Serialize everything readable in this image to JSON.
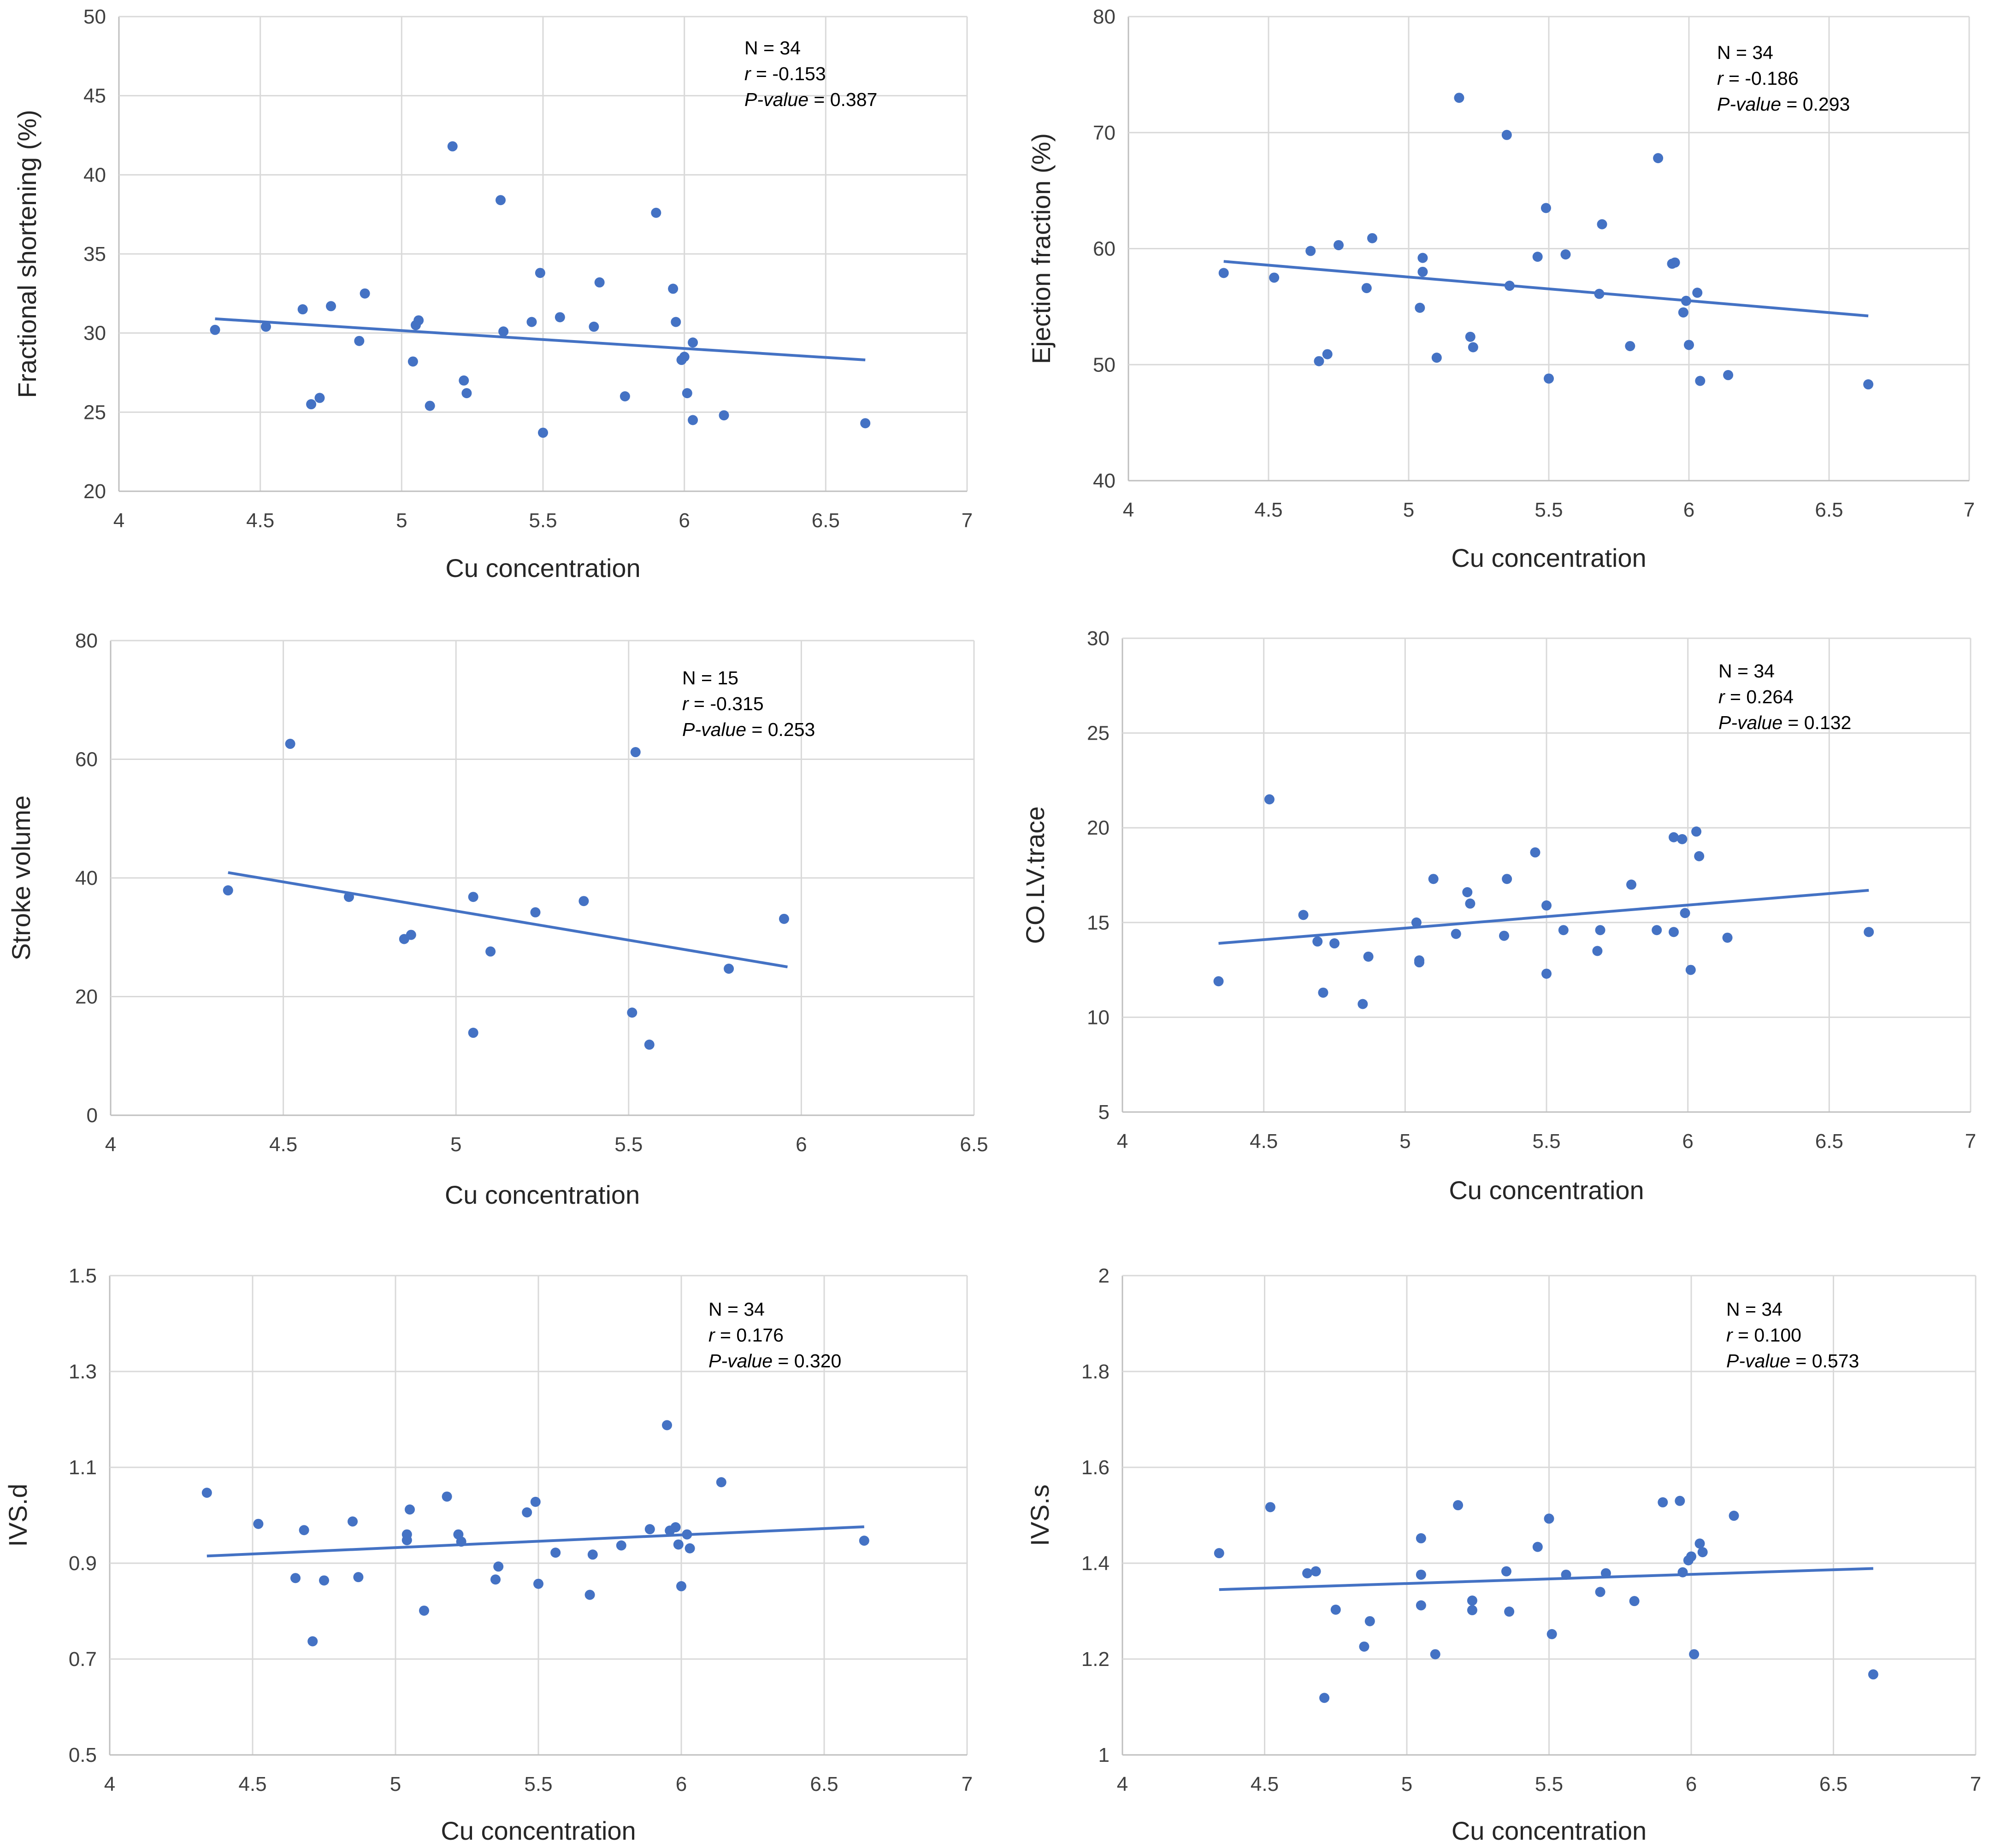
{
  "colors": {
    "marker": "#4472C4",
    "trend": "#4472C4",
    "grid": "#d9d9d9",
    "axis": "#bfbfbf"
  },
  "chart_data": [
    {
      "type": "scatter",
      "xlabel": "Cu concentration",
      "ylabel": "Fractional  shortening (%)",
      "xlim": [
        4,
        7
      ],
      "xticks": [
        "4",
        "4.5",
        "5",
        "5.5",
        "6",
        "6.5",
        "7"
      ],
      "ylim": [
        20,
        50
      ],
      "yticks": [
        "20",
        "25",
        "30",
        "35",
        "40",
        "45",
        "50"
      ],
      "stats": {
        "n": "N = 34",
        "r_label": "r",
        "r_value": " = -0.153",
        "p_label": "P-value",
        "p_value": " = 0.387"
      },
      "trendline": {
        "x": [
          4.34,
          6.64
        ],
        "y": [
          30.9,
          28.3
        ]
      },
      "x": [
        4.34,
        4.52,
        4.65,
        4.68,
        4.71,
        4.75,
        4.85,
        4.87,
        5.04,
        5.05,
        5.06,
        5.1,
        5.18,
        5.22,
        5.23,
        5.35,
        5.36,
        5.46,
        5.49,
        5.5,
        5.56,
        5.68,
        5.7,
        5.79,
        5.9,
        5.96,
        5.97,
        5.99,
        6.0,
        6.01,
        6.03,
        6.03,
        6.14,
        6.64
      ],
      "y": [
        30.2,
        30.4,
        31.5,
        25.5,
        25.9,
        31.7,
        29.5,
        32.5,
        28.2,
        30.5,
        30.8,
        25.4,
        41.8,
        27.0,
        26.2,
        38.4,
        30.1,
        30.7,
        33.8,
        23.7,
        31.0,
        30.4,
        33.2,
        26.0,
        37.6,
        32.8,
        30.7,
        28.3,
        28.5,
        26.2,
        29.4,
        24.5,
        24.8,
        24.3
      ]
    },
    {
      "type": "scatter",
      "xlabel": "Cu concentration",
      "ylabel": "Ejection  fraction (%)",
      "xlim": [
        4,
        7
      ],
      "xticks": [
        "4",
        "4.5",
        "5",
        "5.5",
        "6",
        "6.5",
        "7"
      ],
      "ylim": [
        40,
        80
      ],
      "yticks": [
        "40",
        "50",
        "60",
        "70",
        "80"
      ],
      "stats": {
        "n": "N = 34",
        "r_label": "r",
        "r_value": " = -0.186",
        "p_label": "P-value",
        "p_value": " = 0.293"
      },
      "trendline": {
        "x": [
          4.34,
          6.64
        ],
        "y": [
          58.9,
          54.2
        ]
      },
      "x": [
        4.34,
        4.52,
        4.65,
        4.68,
        4.71,
        4.75,
        4.85,
        4.87,
        5.04,
        5.05,
        5.05,
        5.1,
        5.18,
        5.22,
        5.23,
        5.35,
        5.36,
        5.46,
        5.49,
        5.5,
        5.56,
        5.68,
        5.69,
        5.79,
        5.89,
        5.94,
        5.95,
        5.98,
        5.99,
        6.0,
        6.03,
        6.04,
        6.14,
        6.64
      ],
      "y": [
        57.9,
        57.5,
        59.8,
        50.3,
        50.9,
        60.3,
        56.6,
        60.9,
        54.9,
        59.2,
        58.0,
        50.6,
        73.0,
        52.4,
        51.5,
        69.8,
        56.8,
        59.3,
        63.5,
        48.8,
        59.5,
        56.1,
        62.1,
        51.6,
        67.8,
        58.7,
        58.8,
        54.5,
        55.5,
        51.7,
        56.2,
        48.6,
        49.1,
        48.3
      ]
    },
    {
      "type": "scatter",
      "xlabel": "Cu concentration",
      "ylabel": "Stroke  volume",
      "xlim": [
        4,
        6.5
      ],
      "xticks": [
        "4",
        "4.5",
        "5",
        "5.5",
        "6",
        "6.5"
      ],
      "ylim": [
        0,
        80
      ],
      "yticks": [
        "0",
        "20",
        "40",
        "60",
        "80"
      ],
      "stats": {
        "n": "N = 15",
        "r_label": "r",
        "r_value": " = -0.315",
        "p_label": "P-value",
        "p_value": " = 0.253"
      },
      "trendline": {
        "x": [
          4.34,
          5.96
        ],
        "y": [
          40.9,
          25.0
        ]
      },
      "x": [
        4.34,
        4.52,
        4.69,
        4.85,
        4.87,
        5.05,
        5.05,
        5.1,
        5.23,
        5.37,
        5.51,
        5.52,
        5.56,
        5.79,
        5.95
      ],
      "y": [
        37.9,
        62.6,
        36.8,
        29.7,
        30.4,
        36.8,
        13.9,
        27.6,
        34.2,
        36.1,
        17.3,
        61.2,
        11.9,
        24.7,
        33.1
      ]
    },
    {
      "type": "scatter",
      "xlabel": "Cu concentration",
      "ylabel": "CO.LV.trace",
      "xlim": [
        4,
        7
      ],
      "xticks": [
        "4",
        "4.5",
        "5",
        "5.5",
        "6",
        "6.5",
        "7"
      ],
      "ylim": [
        5,
        30
      ],
      "yticks": [
        "5",
        "10",
        "15",
        "20",
        "25",
        "30"
      ],
      "stats": {
        "n": "N = 34",
        "r_label": "r",
        "r_value": " = 0.264",
        "p_label": "P-value",
        "p_value": " = 0.132"
      },
      "trendline": {
        "x": [
          4.34,
          6.64
        ],
        "y": [
          13.9,
          16.7
        ]
      },
      "x": [
        4.34,
        4.52,
        4.64,
        4.69,
        4.71,
        4.75,
        4.85,
        4.87,
        5.04,
        5.05,
        5.05,
        5.1,
        5.18,
        5.22,
        5.23,
        5.35,
        5.36,
        5.46,
        5.5,
        5.5,
        5.56,
        5.68,
        5.69,
        5.8,
        5.89,
        5.95,
        5.95,
        5.98,
        5.99,
        6.01,
        6.03,
        6.04,
        6.14,
        6.64
      ],
      "y": [
        11.9,
        21.5,
        15.4,
        14.0,
        11.3,
        13.9,
        10.7,
        13.2,
        15.0,
        12.9,
        13.0,
        17.3,
        14.4,
        16.6,
        16.0,
        14.3,
        17.3,
        18.7,
        15.9,
        12.3,
        14.6,
        13.5,
        14.6,
        17.0,
        14.6,
        19.5,
        14.5,
        19.4,
        15.5,
        12.5,
        19.8,
        18.5,
        14.2,
        14.5
      ]
    },
    {
      "type": "scatter",
      "xlabel": "Cu concentration",
      "ylabel": "IVS.d",
      "xlim": [
        4,
        7
      ],
      "xticks": [
        "4",
        "4.5",
        "5",
        "5.5",
        "6",
        "6.5",
        "7"
      ],
      "ylim": [
        0.5,
        1.5
      ],
      "yticks": [
        "0.5",
        "0.7",
        "0.9",
        "1.1",
        "1.3",
        "1.5"
      ],
      "stats": {
        "n": "N = 34",
        "r_label": "r",
        "r_value": " = 0.176",
        "p_label": "P-value",
        "p_value": " = 0.320"
      },
      "trendline": {
        "x": [
          4.34,
          6.64
        ],
        "y": [
          0.915,
          0.976
        ]
      },
      "x": [
        4.34,
        4.52,
        4.65,
        4.68,
        4.71,
        4.75,
        4.85,
        4.87,
        5.04,
        5.04,
        5.05,
        5.1,
        5.18,
        5.22,
        5.23,
        5.35,
        5.36,
        5.46,
        5.49,
        5.5,
        5.56,
        5.68,
        5.69,
        5.79,
        5.89,
        5.95,
        5.96,
        5.98,
        5.99,
        6.0,
        6.02,
        6.03,
        6.14,
        6.64
      ],
      "y": [
        1.047,
        0.982,
        0.869,
        0.969,
        0.737,
        0.864,
        0.987,
        0.871,
        0.948,
        0.96,
        1.012,
        0.801,
        1.039,
        0.96,
        0.945,
        0.866,
        0.893,
        1.006,
        1.028,
        0.857,
        0.922,
        0.834,
        0.918,
        0.937,
        0.971,
        1.188,
        0.968,
        0.975,
        0.939,
        0.852,
        0.96,
        0.931,
        1.069,
        0.947
      ]
    },
    {
      "type": "scatter",
      "xlabel": "Cu concentration",
      "ylabel": "IVS.s",
      "xlim": [
        4,
        7
      ],
      "xticks": [
        "4",
        "4.5",
        "5",
        "5.5",
        "6",
        "6.5",
        "7"
      ],
      "ylim": [
        1,
        2
      ],
      "yticks": [
        "1",
        "1.2",
        "1.4",
        "1.6",
        "1.8",
        "2"
      ],
      "stats": {
        "n": "N = 34",
        "r_label": "r",
        "r_value": " = 0.100",
        "p_label": "P-value",
        "p_value": " = 0.573"
      },
      "trendline": {
        "x": [
          4.34,
          6.64
        ],
        "y": [
          1.345,
          1.389
        ]
      },
      "x": [
        4.34,
        4.52,
        4.65,
        4.68,
        4.71,
        4.75,
        4.85,
        4.87,
        5.05,
        5.05,
        5.05,
        5.1,
        5.18,
        5.23,
        5.23,
        5.35,
        5.36,
        5.46,
        5.5,
        5.51,
        5.56,
        5.68,
        5.7,
        5.8,
        5.9,
        5.96,
        5.97,
        5.99,
        6.0,
        6.01,
        6.03,
        6.04,
        6.15,
        6.64
      ],
      "y": [
        1.421,
        1.517,
        1.379,
        1.383,
        1.119,
        1.303,
        1.226,
        1.279,
        1.452,
        1.376,
        1.312,
        1.21,
        1.521,
        1.302,
        1.322,
        1.383,
        1.299,
        1.434,
        1.493,
        1.252,
        1.376,
        1.34,
        1.379,
        1.321,
        1.527,
        1.53,
        1.381,
        1.406,
        1.414,
        1.21,
        1.441,
        1.423,
        1.499,
        1.168
      ]
    }
  ]
}
